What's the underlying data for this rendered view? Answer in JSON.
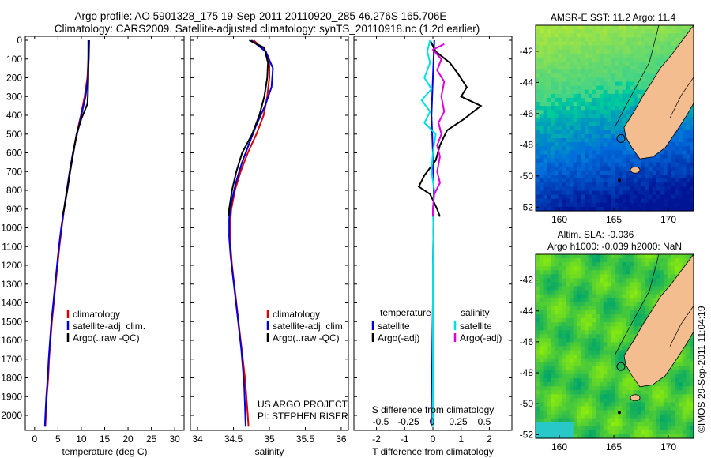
{
  "header": {
    "line1": "Argo profile: AO 5901328_175 19-Sep-2011 20110920_285 46.276S 165.706E",
    "line2": "Climatology: CARS2009. Satellite-adjusted climatology: synTS_20110918.nc (1.2d earlier)"
  },
  "maps": {
    "sst_title": "AMSR-E SST: 11.2 Argo: 11.4",
    "sla_title1": "Altim. SLA: -0.036",
    "sla_title2": "Argo h1000: -0.039 h2000: NaN",
    "credit": "©IMOS 29-Sep-2011 11:04:19",
    "lat_ticks": [
      "-42",
      "-44",
      "-46",
      "-48",
      "-50",
      "-52"
    ],
    "lon_ticks": [
      "160",
      "165",
      "170"
    ],
    "colors": {
      "land": "#f3bd8f",
      "coast": "#000000"
    }
  },
  "chart_data": [
    {
      "type": "line",
      "title": "",
      "xlabel": "temperature (deg C)",
      "ylabel": "",
      "xlim": [
        -2,
        32
      ],
      "ylim": [
        2080,
        0
      ],
      "x_ticks": [
        "0",
        "5",
        "10",
        "15",
        "20",
        "25",
        "30"
      ],
      "y_ticks": [
        "0",
        "100",
        "200",
        "300",
        "400",
        "500",
        "600",
        "700",
        "800",
        "900",
        "1000",
        "1100",
        "1200",
        "1300",
        "1400",
        "1500",
        "1600",
        "1700",
        "1800",
        "1900",
        "2000"
      ],
      "legend": [
        "climatology",
        "satellite-adj. clim.",
        "Argo(..raw -QC)"
      ],
      "series": [
        {
          "name": "climatology",
          "color": "#dd0000",
          "points": [
            [
              11.6,
              0
            ],
            [
              11.5,
              100
            ],
            [
              11.3,
              200
            ],
            [
              10.7,
              300
            ],
            [
              9.9,
              400
            ],
            [
              9.0,
              500
            ],
            [
              8.2,
              600
            ],
            [
              7.5,
              700
            ],
            [
              6.9,
              800
            ],
            [
              6.3,
              900
            ],
            [
              5.8,
              1000
            ],
            [
              5.3,
              1100
            ],
            [
              4.9,
              1200
            ],
            [
              4.5,
              1300
            ],
            [
              4.1,
              1400
            ],
            [
              3.7,
              1500
            ],
            [
              3.4,
              1600
            ],
            [
              3.1,
              1700
            ],
            [
              2.9,
              1800
            ],
            [
              2.6,
              1900
            ],
            [
              2.4,
              2000
            ],
            [
              2.3,
              2060
            ]
          ]
        },
        {
          "name": "satellite-adj. clim.",
          "color": "#0000dd",
          "points": [
            [
              11.7,
              0
            ],
            [
              11.6,
              100
            ],
            [
              11.4,
              200
            ],
            [
              10.9,
              300
            ],
            [
              10.0,
              400
            ],
            [
              9.1,
              500
            ],
            [
              8.2,
              600
            ],
            [
              7.5,
              700
            ],
            [
              6.9,
              800
            ],
            [
              6.3,
              900
            ],
            [
              5.7,
              1000
            ],
            [
              5.2,
              1100
            ],
            [
              4.8,
              1200
            ],
            [
              4.4,
              1300
            ],
            [
              4.0,
              1400
            ],
            [
              3.6,
              1500
            ],
            [
              3.3,
              1600
            ],
            [
              3.0,
              1700
            ],
            [
              2.8,
              1800
            ],
            [
              2.5,
              1900
            ],
            [
              2.3,
              2000
            ],
            [
              2.2,
              2060
            ]
          ]
        },
        {
          "name": "Argo(..raw -QC)",
          "color": "#000000",
          "points": [
            [
              11.5,
              0
            ],
            [
              11.5,
              100
            ],
            [
              11.5,
              200
            ],
            [
              11.4,
              300
            ],
            [
              11.3,
              340
            ],
            [
              10.0,
              420
            ],
            [
              9.0,
              500
            ],
            [
              8.3,
              600
            ],
            [
              7.6,
              700
            ],
            [
              7.0,
              800
            ],
            [
              6.3,
              900
            ],
            [
              6.0,
              930
            ]
          ]
        }
      ]
    },
    {
      "type": "line",
      "title": "",
      "xlabel": "salinity",
      "ylabel": "",
      "xlim": [
        33.9,
        36.1
      ],
      "ylim": [
        2080,
        0
      ],
      "x_ticks": [
        "34",
        "34.5",
        "35",
        "35.5",
        "36"
      ],
      "legend": [
        "climatology",
        "satellite-adj. clim.",
        "Argo(..raw -QC)"
      ],
      "annotation": [
        "US ARGO PROJECT",
        "PI: STEPHEN RISER"
      ],
      "series": [
        {
          "name": "climatology",
          "color": "#dd0000",
          "points": [
            [
              34.78,
              0
            ],
            [
              34.95,
              60
            ],
            [
              35.0,
              130
            ],
            [
              35.0,
              200
            ],
            [
              34.97,
              300
            ],
            [
              34.92,
              400
            ],
            [
              34.82,
              500
            ],
            [
              34.7,
              600
            ],
            [
              34.6,
              700
            ],
            [
              34.52,
              800
            ],
            [
              34.47,
              900
            ],
            [
              34.45,
              1000
            ],
            [
              34.46,
              1100
            ],
            [
              34.48,
              1200
            ],
            [
              34.51,
              1300
            ],
            [
              34.54,
              1400
            ],
            [
              34.57,
              1500
            ],
            [
              34.6,
              1600
            ],
            [
              34.63,
              1700
            ],
            [
              34.66,
              1800
            ],
            [
              34.68,
              1900
            ],
            [
              34.7,
              2000
            ],
            [
              34.71,
              2060
            ]
          ]
        },
        {
          "name": "satellite-adj. clim.",
          "color": "#0000dd",
          "points": [
            [
              34.75,
              0
            ],
            [
              34.95,
              60
            ],
            [
              35.05,
              150
            ],
            [
              35.03,
              250
            ],
            [
              34.94,
              350
            ],
            [
              34.82,
              450
            ],
            [
              34.72,
              550
            ],
            [
              34.62,
              650
            ],
            [
              34.54,
              750
            ],
            [
              34.48,
              850
            ],
            [
              34.44,
              950
            ],
            [
              34.44,
              1050
            ],
            [
              34.46,
              1150
            ],
            [
              34.49,
              1250
            ],
            [
              34.52,
              1350
            ],
            [
              34.55,
              1450
            ],
            [
              34.58,
              1550
            ],
            [
              34.61,
              1650
            ],
            [
              34.63,
              1750
            ],
            [
              34.65,
              1850
            ],
            [
              34.66,
              1950
            ],
            [
              34.67,
              2060
            ]
          ]
        },
        {
          "name": "Argo(..raw -QC)",
          "color": "#000000",
          "points": [
            [
              34.72,
              0
            ],
            [
              34.93,
              40
            ],
            [
              34.98,
              120
            ],
            [
              34.97,
              200
            ],
            [
              34.93,
              300
            ],
            [
              34.86,
              400
            ],
            [
              34.76,
              500
            ],
            [
              34.62,
              600
            ],
            [
              34.54,
              700
            ],
            [
              34.48,
              800
            ],
            [
              34.44,
              900
            ],
            [
              34.43,
              940
            ]
          ]
        }
      ]
    },
    {
      "type": "line",
      "title": "",
      "xlabel": "T difference from climatology",
      "ylabel": "",
      "xlim": [
        -2.8,
        2.8
      ],
      "ylim": [
        2080,
        0
      ],
      "x_ticks": [
        "-2",
        "-1",
        "0",
        "1",
        "2"
      ],
      "x2label": "S difference from climatology",
      "x2_ticks": [
        "-0.5",
        "-0.25",
        "0",
        "0.25",
        "0.5"
      ],
      "legend_headers": [
        "temperature",
        "salinity"
      ],
      "legend": [
        "satellite",
        "Argo(-adj)",
        "satellite",
        "Argo(-adj)"
      ],
      "series": [
        {
          "name": "satellite",
          "color": "#0000dd",
          "points": [
            [
              0.05,
              0
            ],
            [
              0.0,
              200
            ],
            [
              -0.05,
              400
            ],
            [
              0.0,
              600
            ],
            [
              0.03,
              800
            ],
            [
              0.02,
              1000
            ],
            [
              0.0,
              1200
            ],
            [
              0.0,
              1400
            ],
            [
              -0.02,
              1600
            ],
            [
              -0.03,
              1800
            ],
            [
              -0.02,
              2000
            ],
            [
              -0.02,
              2060
            ]
          ]
        },
        {
          "name": "Argo(-adj)",
          "color": "#000000",
          "points": [
            [
              -0.1,
              0
            ],
            [
              0.1,
              60
            ],
            [
              0.6,
              120
            ],
            [
              0.9,
              180
            ],
            [
              1.2,
              250
            ],
            [
              1.0,
              300
            ],
            [
              1.7,
              350
            ],
            [
              1.1,
              420
            ],
            [
              0.5,
              480
            ],
            [
              0.25,
              560
            ],
            [
              0.1,
              640
            ],
            [
              -0.3,
              720
            ],
            [
              -0.5,
              780
            ],
            [
              -0.1,
              820
            ],
            [
              0.15,
              900
            ],
            [
              0.25,
              940
            ]
          ]
        },
        {
          "name": "satellite",
          "color": "#00e0e0",
          "points": [
            [
              -0.1,
              0
            ],
            [
              -0.2,
              60
            ],
            [
              -0.1,
              120
            ],
            [
              -0.3,
              200
            ],
            [
              -0.05,
              260
            ],
            [
              -0.4,
              320
            ],
            [
              -0.1,
              380
            ],
            [
              -0.3,
              440
            ],
            [
              0.1,
              500
            ],
            [
              0.0,
              600
            ],
            [
              -0.05,
              700
            ],
            [
              0.05,
              800
            ],
            [
              0.0,
              900
            ],
            [
              0.02,
              1000
            ],
            [
              0.0,
              1200
            ],
            [
              0.0,
              1600
            ],
            [
              0.0,
              2000
            ],
            [
              0.0,
              2060
            ]
          ]
        },
        {
          "name": "Argo(-adj)",
          "color": "#dd00dd",
          "points": [
            [
              0.4,
              20
            ],
            [
              0.0,
              50
            ],
            [
              0.3,
              100
            ],
            [
              0.15,
              160
            ],
            [
              0.4,
              220
            ],
            [
              0.3,
              300
            ],
            [
              0.4,
              380
            ],
            [
              0.2,
              440
            ],
            [
              0.3,
              500
            ],
            [
              0.15,
              560
            ],
            [
              0.25,
              620
            ],
            [
              0.15,
              700
            ],
            [
              0.25,
              760
            ],
            [
              0.05,
              820
            ],
            [
              0.0,
              900
            ],
            [
              0.0,
              940
            ]
          ]
        }
      ]
    }
  ]
}
